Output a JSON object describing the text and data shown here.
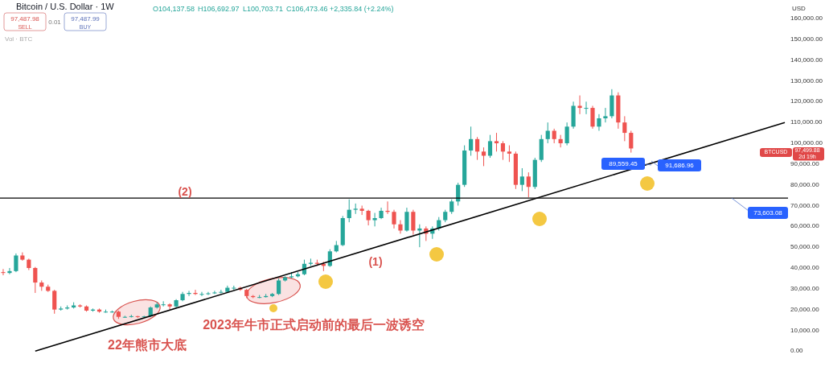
{
  "chart_data": {
    "type": "candlestick",
    "title": "Bitcoin / U.S. Dollar · 1W",
    "categories": [
      null,
      null,
      null,
      null,
      null,
      null,
      null,
      null,
      null,
      null,
      null,
      null,
      null,
      null,
      null,
      null,
      null,
      null,
      null,
      null,
      null,
      null,
      null,
      null,
      null,
      null,
      null,
      null,
      null,
      null,
      null,
      null,
      null,
      null,
      null,
      null,
      null,
      null,
      null,
      null,
      null,
      null,
      null,
      null,
      null,
      null,
      null,
      null,
      null,
      null,
      null,
      null,
      null,
      null,
      null,
      null,
      null,
      null,
      null,
      null,
      null,
      null,
      null,
      null,
      null,
      null,
      null,
      null,
      null,
      null,
      null,
      null,
      null,
      null,
      null,
      null,
      null,
      null,
      null,
      null,
      null,
      null,
      null,
      null,
      null,
      null,
      null,
      null,
      null,
      null,
      null,
      null,
      null,
      null,
      null,
      null,
      null,
      null,
      null,
      null,
      null,
      null,
      null,
      null,
      null,
      null,
      null,
      null,
      null,
      null,
      null,
      null,
      null,
      null,
      null,
      null,
      null,
      null,
      null,
      null,
      null,
      null,
      null
    ],
    "ohlc": [
      [
        38000,
        39500,
        36500,
        37600
      ],
      [
        37600,
        40000,
        37000,
        38500
      ],
      [
        38500,
        47000,
        38000,
        46000
      ],
      [
        46000,
        47500,
        43500,
        44000
      ],
      [
        44000,
        44500,
        39000,
        40000
      ],
      [
        40000,
        40500,
        28000,
        33000
      ],
      [
        33000,
        34000,
        29000,
        31000
      ],
      [
        31000,
        32000,
        28500,
        29000
      ],
      [
        29000,
        29500,
        18000,
        20000
      ],
      [
        20000,
        21500,
        19500,
        20500
      ],
      [
        20500,
        22000,
        20000,
        21000
      ],
      [
        21000,
        23500,
        20500,
        22000
      ],
      [
        22000,
        22500,
        21000,
        21500
      ],
      [
        21500,
        22000,
        19000,
        19500
      ],
      [
        19500,
        20500,
        19000,
        20000
      ],
      [
        20000,
        20500,
        18500,
        19000
      ],
      [
        19000,
        20000,
        18500,
        19000
      ],
      [
        19000,
        19500,
        18500,
        19000
      ],
      [
        19000,
        19500,
        15500,
        16500
      ],
      [
        16500,
        17000,
        16000,
        16500
      ],
      [
        16500,
        17500,
        16200,
        16800
      ],
      [
        16800,
        17000,
        16000,
        16500
      ],
      [
        16500,
        17000,
        16300,
        16700
      ],
      [
        16700,
        21500,
        16500,
        21000
      ],
      [
        21000,
        23500,
        20500,
        22500
      ],
      [
        22500,
        24000,
        21500,
        22500
      ],
      [
        22500,
        23000,
        20000,
        21500
      ],
      [
        21500,
        25000,
        21000,
        24500
      ],
      [
        24500,
        28500,
        24000,
        27500
      ],
      [
        27500,
        29000,
        26500,
        28000
      ],
      [
        28000,
        29500,
        27000,
        27500
      ],
      [
        27500,
        28500,
        26500,
        27500
      ],
      [
        27500,
        28500,
        27000,
        27800
      ],
      [
        27800,
        29000,
        27500,
        28200
      ],
      [
        28200,
        29500,
        27800,
        28500
      ],
      [
        28500,
        31500,
        28000,
        30500
      ],
      [
        30500,
        31500,
        29500,
        30500
      ],
      [
        30500,
        31000,
        29000,
        29500
      ],
      [
        29500,
        30000,
        25500,
        26500
      ],
      [
        26500,
        27000,
        25500,
        26000
      ],
      [
        26000,
        27000,
        25500,
        26000
      ],
      [
        26000,
        27500,
        25800,
        26500
      ],
      [
        26500,
        28000,
        26000,
        27500
      ],
      [
        27500,
        35000,
        27000,
        34000
      ],
      [
        34000,
        36000,
        33500,
        35500
      ],
      [
        35500,
        38000,
        35000,
        36000
      ],
      [
        36000,
        38000,
        35500,
        37000
      ],
      [
        37000,
        44000,
        36500,
        42000
      ],
      [
        42000,
        44500,
        41000,
        42500
      ],
      [
        42500,
        44000,
        41000,
        42000
      ],
      [
        42000,
        43000,
        38500,
        41000
      ],
      [
        41000,
        49000,
        40500,
        48000
      ],
      [
        48000,
        53000,
        47500,
        51000
      ],
      [
        51000,
        65000,
        50500,
        64000
      ],
      [
        64000,
        73000,
        62000,
        68000
      ],
      [
        68000,
        71000,
        66000,
        68500
      ],
      [
        68500,
        70000,
        65500,
        67500
      ],
      [
        67500,
        68000,
        60500,
        63000
      ],
      [
        63000,
        66500,
        60000,
        64000
      ],
      [
        64000,
        69000,
        63500,
        67500
      ],
      [
        67500,
        72000,
        66000,
        67000
      ],
      [
        67000,
        68000,
        59000,
        61000
      ],
      [
        61000,
        63000,
        56500,
        58000
      ],
      [
        58000,
        69000,
        57500,
        67000
      ],
      [
        67000,
        68000,
        56000,
        58000
      ],
      [
        58000,
        61000,
        50000,
        59000
      ],
      [
        59000,
        60000,
        53000,
        56500
      ],
      [
        56500,
        60000,
        54000,
        59000
      ],
      [
        59000,
        64500,
        58000,
        63000
      ],
      [
        63000,
        68000,
        62000,
        67000
      ],
      [
        67000,
        73000,
        66000,
        72000
      ],
      [
        72000,
        81000,
        70000,
        80000
      ],
      [
        80000,
        99000,
        79000,
        96500
      ],
      [
        96500,
        108000,
        94000,
        102000
      ],
      [
        102000,
        103000,
        92000,
        96000
      ],
      [
        96000,
        98000,
        89000,
        94000
      ],
      [
        94000,
        104000,
        93000,
        101000
      ],
      [
        101000,
        105000,
        96000,
        100000
      ],
      [
        100000,
        101000,
        92000,
        96000
      ],
      [
        96000,
        99000,
        91000,
        95000
      ],
      [
        95000,
        96000,
        78000,
        80000
      ],
      [
        80000,
        88000,
        77000,
        84000
      ],
      [
        84000,
        86000,
        74000,
        79000
      ],
      [
        79000,
        93000,
        78000,
        92000
      ],
      [
        92000,
        104000,
        91000,
        102000
      ],
      [
        102000,
        110000,
        100000,
        106000
      ],
      [
        106000,
        107000,
        100000,
        102000
      ],
      [
        102000,
        104000,
        98000,
        100000
      ],
      [
        100000,
        110000,
        99000,
        108000
      ],
      [
        108000,
        120000,
        107000,
        118000
      ],
      [
        118000,
        123000,
        114000,
        117000
      ],
      [
        117000,
        120000,
        114000,
        117000
      ],
      [
        117000,
        118000,
        107000,
        108000
      ],
      [
        108000,
        114000,
        106000,
        112000
      ],
      [
        112000,
        117000,
        110000,
        113000
      ],
      [
        113000,
        126000,
        112000,
        123000
      ],
      [
        123000,
        124500,
        107000,
        110000
      ],
      [
        110000,
        113000,
        101000,
        105000
      ],
      [
        105000,
        106000,
        95500,
        97499.88
      ],
      null,
      null,
      null,
      null,
      null,
      null,
      null,
      null,
      null,
      null,
      null,
      null,
      null,
      null,
      null,
      null,
      null,
      null,
      null,
      null,
      null,
      null,
      null,
      null
    ],
    "colors": [
      "#ef5350",
      "#26a69a",
      "#26a69a",
      "#ef5350",
      "#ef5350",
      "#ef5350",
      "#ef5350",
      "#ef5350",
      "#ef5350",
      "#26a69a",
      "#26a69a",
      "#26a69a",
      "#ef5350",
      "#ef5350",
      "#26a69a",
      "#ef5350",
      "#26a69a",
      "#26a69a",
      "#ef5350",
      "#26a69a",
      "#26a69a",
      "#ef5350",
      "#26a69a",
      "#26a69a",
      "#26a69a",
      "#26a69a",
      "#ef5350",
      "#26a69a",
      "#26a69a",
      "#26a69a",
      "#ef5350",
      "#26a69a",
      "#26a69a",
      "#26a69a",
      "#26a69a",
      "#26a69a",
      "#26a69a",
      "#ef5350",
      "#ef5350",
      "#ef5350",
      "#26a69a",
      "#26a69a",
      "#26a69a",
      "#26a69a",
      "#26a69a",
      "#26a69a",
      "#26a69a",
      "#26a69a",
      "#26a69a",
      "#ef5350",
      "#ef5350",
      "#26a69a",
      "#26a69a",
      "#26a69a",
      "#26a69a",
      "#26a69a",
      "#ef5350",
      "#ef5350",
      "#26a69a",
      "#26a69a",
      "#ef5350",
      "#ef5350",
      "#ef5350",
      "#26a69a",
      "#ef5350",
      "#26a69a",
      "#ef5350",
      "#26a69a",
      "#26a69a",
      "#26a69a",
      "#26a69a",
      "#26a69a",
      "#26a69a",
      "#26a69a",
      "#ef5350",
      "#ef5350",
      "#26a69a",
      "#ef5350",
      "#ef5350",
      "#ef5350",
      "#ef5350",
      "#26a69a",
      "#ef5350",
      "#26a69a",
      "#26a69a",
      "#26a69a",
      "#ef5350",
      "#ef5350",
      "#26a69a",
      "#26a69a",
      "#ef5350",
      "#26a69a",
      "#ef5350",
      "#26a69a",
      "#26a69a",
      "#26a69a",
      "#ef5350",
      "#ef5350",
      "#ef5350",
      null,
      null,
      null,
      null,
      null,
      null,
      null,
      null,
      null,
      null,
      null,
      null,
      null,
      null,
      null,
      null,
      null,
      null,
      null,
      null,
      null,
      null,
      null,
      null
    ],
    "series": [
      {
        "type": "line",
        "values": [
          null,
          null,
          null,
          null,
          null,
          0,
          null,
          null,
          null,
          null,
          null,
          null,
          null,
          null,
          null,
          null,
          null,
          null,
          null,
          null,
          null,
          null,
          null,
          null,
          null,
          null,
          null,
          null,
          null,
          null,
          null,
          null,
          null,
          null,
          null,
          null,
          null,
          null,
          null,
          null,
          null,
          null,
          null,
          null,
          null,
          null,
          null,
          null,
          null,
          null,
          null,
          null,
          null,
          null,
          null,
          null,
          null,
          null,
          null,
          null,
          null,
          null,
          null,
          null,
          null,
          null,
          null,
          null,
          null,
          null,
          null,
          null,
          null,
          null,
          null,
          null,
          null,
          null,
          null,
          null,
          null,
          null,
          null,
          null,
          null,
          null,
          null,
          null,
          null,
          null,
          null,
          null,
          null,
          null,
          null,
          null,
          null,
          null,
          null,
          null,
          null,
          null,
          null,
          null,
          null,
          null,
          null,
          null,
          null,
          null,
          null,
          null,
          null,
          null,
          null,
          null,
          null,
          null,
          null,
          null,
          null,
          null,
          110000
        ],
        "color": "#000000"
      }
    ],
    "ref_lines": [
      {
        "axis": "y",
        "value": 73603.08,
        "label": "73,603.08",
        "color": "#000000"
      }
    ],
    "ylim": [
      0,
      160000
    ],
    "yticks": [
      {
        "value": 0,
        "label": "0.00"
      },
      {
        "value": 10000,
        "label": "10,000.00"
      },
      {
        "value": 20000,
        "label": "20,000.00"
      },
      {
        "value": 30000,
        "label": "30,000.00"
      },
      {
        "value": 40000,
        "label": "40,000.00"
      },
      {
        "value": 50000,
        "label": "50,000.00"
      },
      {
        "value": 60000,
        "label": "60,000.00"
      },
      {
        "value": 70000,
        "label": "70,000.00"
      },
      {
        "value": 80000,
        "label": "80,000.00"
      },
      {
        "value": 90000,
        "label": "90,000.00"
      },
      {
        "value": 100000,
        "label": "100,000.00"
      },
      {
        "value": 110000,
        "label": "110,000.00"
      },
      {
        "value": 120000,
        "label": "120,000.00"
      },
      {
        "value": 130000,
        "label": "130,000.00"
      },
      {
        "value": 140000,
        "label": "140,000.00"
      },
      {
        "value": 150000,
        "label": "150,000.00"
      },
      {
        "value": 160000,
        "label": "160,000.00"
      }
    ],
    "tick_labels": "y",
    "annotations": [
      "O104,137.58",
      "H106,692.97",
      "L100,703.71",
      "C106,473.46",
      "+2,335.84 (+2.24%)",
      "97,487.98",
      "SELL",
      "0.01",
      "97,487.99",
      "BUY",
      "Vol · BTC",
      "USD",
      "BTCUSD",
      "97,499.88",
      "2d 19h",
      "(2)",
      "(1)",
      "22年熊市大底",
      "2023年牛市正式启动前的最后一波诱空",
      "89,559.45",
      "91,686.96"
    ]
  }
}
